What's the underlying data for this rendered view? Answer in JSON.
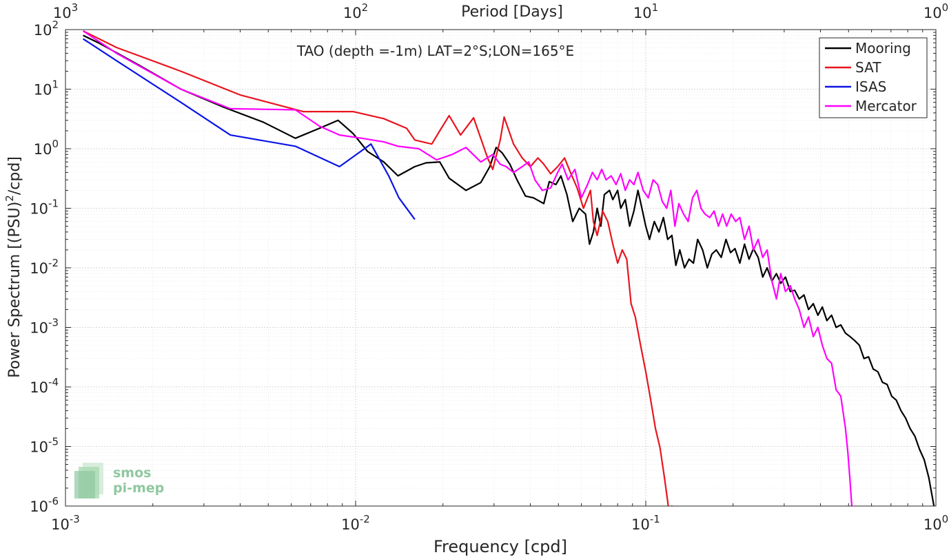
{
  "chart_data": {
    "type": "line",
    "title": "TAO (depth =-1m) LAT=2°S;LON=165°E",
    "xlabel": "Frequency [cpd]",
    "ylabel": "Power Spectrum [(PSU)²/cpd]",
    "x2label": "Period [Days]",
    "x_scale": "log",
    "y_scale": "log",
    "xlim": [
      0.001,
      1
    ],
    "ylim": [
      1e-06,
      100
    ],
    "x_ticks": [
      {
        "base": "10",
        "exp": "-3",
        "value": 0.001
      },
      {
        "base": "10",
        "exp": "-2",
        "value": 0.01
      },
      {
        "base": "10",
        "exp": "-1",
        "value": 0.1
      },
      {
        "base": "10",
        "exp": "0",
        "value": 1
      }
    ],
    "x2_ticks": [
      {
        "base": "10",
        "exp": "3",
        "value": 1000
      },
      {
        "base": "10",
        "exp": "2",
        "value": 100
      },
      {
        "base": "10",
        "exp": "1",
        "value": 10
      },
      {
        "base": "10",
        "exp": "0",
        "value": 1
      }
    ],
    "y_ticks": [
      {
        "base": "10",
        "exp": "2",
        "value": 100
      },
      {
        "base": "10",
        "exp": "1",
        "value": 10
      },
      {
        "base": "10",
        "exp": "0",
        "value": 1
      },
      {
        "base": "10",
        "exp": "-1",
        "value": 0.1
      },
      {
        "base": "10",
        "exp": "-2",
        "value": 0.01
      },
      {
        "base": "10",
        "exp": "-3",
        "value": 0.001
      },
      {
        "base": "10",
        "exp": "-4",
        "value": 0.0001
      },
      {
        "base": "10",
        "exp": "-5",
        "value": 1e-05
      },
      {
        "base": "10",
        "exp": "-6",
        "value": 1e-06
      }
    ],
    "grid": true,
    "legend_position": "top-right",
    "series": [
      {
        "name": "Mooring",
        "color": "#000000",
        "points": [
          [
            0.00115,
            80
          ],
          [
            0.0013,
            60
          ],
          [
            0.0018,
            25
          ],
          [
            0.0025,
            10
          ],
          [
            0.0035,
            5
          ],
          [
            0.0048,
            2.8
          ],
          [
            0.0062,
            1.5
          ],
          [
            0.0075,
            2.2
          ],
          [
            0.0087,
            3
          ],
          [
            0.0098,
            1.8
          ],
          [
            0.011,
            0.9
          ],
          [
            0.0125,
            0.6
          ],
          [
            0.014,
            0.35
          ],
          [
            0.016,
            0.5
          ],
          [
            0.0175,
            0.58
          ],
          [
            0.0195,
            0.6
          ],
          [
            0.021,
            0.32
          ],
          [
            0.024,
            0.2
          ],
          [
            0.027,
            0.27
          ],
          [
            0.029,
            0.5
          ],
          [
            0.0305,
            1.05
          ],
          [
            0.032,
            0.85
          ],
          [
            0.034,
            0.55
          ],
          [
            0.036,
            0.3
          ],
          [
            0.0385,
            0.16
          ],
          [
            0.041,
            0.15
          ],
          [
            0.0445,
            0.12
          ],
          [
            0.0465,
            0.28
          ],
          [
            0.049,
            0.25
          ],
          [
            0.051,
            0.35
          ],
          [
            0.0535,
            0.17
          ],
          [
            0.056,
            0.06
          ],
          [
            0.059,
            0.1
          ],
          [
            0.062,
            0.08
          ],
          [
            0.064,
            0.025
          ],
          [
            0.066,
            0.04
          ],
          [
            0.068,
            0.1
          ],
          [
            0.07,
            0.05
          ],
          [
            0.072,
            0.17
          ],
          [
            0.075,
            0.2
          ],
          [
            0.077,
            0.14
          ],
          [
            0.08,
            0.2
          ],
          [
            0.082,
            0.1
          ],
          [
            0.085,
            0.14
          ],
          [
            0.088,
            0.05
          ],
          [
            0.091,
            0.09
          ],
          [
            0.094,
            0.2
          ],
          [
            0.097,
            0.1
          ],
          [
            0.1,
            0.05
          ],
          [
            0.103,
            0.03
          ],
          [
            0.107,
            0.06
          ],
          [
            0.111,
            0.04
          ],
          [
            0.115,
            0.07
          ],
          [
            0.119,
            0.03
          ],
          [
            0.123,
            0.035
          ],
          [
            0.127,
            0.011
          ],
          [
            0.131,
            0.02
          ],
          [
            0.136,
            0.01
          ],
          [
            0.141,
            0.014
          ],
          [
            0.146,
            0.012
          ],
          [
            0.151,
            0.03
          ],
          [
            0.157,
            0.02
          ],
          [
            0.163,
            0.01
          ],
          [
            0.169,
            0.017
          ],
          [
            0.175,
            0.02
          ],
          [
            0.182,
            0.015
          ],
          [
            0.189,
            0.03
          ],
          [
            0.196,
            0.018
          ],
          [
            0.203,
            0.021
          ],
          [
            0.211,
            0.012
          ],
          [
            0.219,
            0.025
          ],
          [
            0.227,
            0.014
          ],
          [
            0.235,
            0.021
          ],
          [
            0.244,
            0.015
          ],
          [
            0.253,
            0.007
          ],
          [
            0.262,
            0.01
          ],
          [
            0.272,
            0.006
          ],
          [
            0.282,
            0.008
          ],
          [
            0.292,
            0.0055
          ],
          [
            0.303,
            0.007
          ],
          [
            0.315,
            0.004
          ],
          [
            0.326,
            0.0042
          ],
          [
            0.338,
            0.003
          ],
          [
            0.351,
            0.0035
          ],
          [
            0.364,
            0.002
          ],
          [
            0.378,
            0.0025
          ],
          [
            0.392,
            0.0016
          ],
          [
            0.406,
            0.0022
          ],
          [
            0.421,
            0.0013
          ],
          [
            0.437,
            0.0016
          ],
          [
            0.453,
            0.001
          ],
          [
            0.47,
            0.0011
          ],
          [
            0.488,
            0.0008
          ],
          [
            0.506,
            0.0007
          ],
          [
            0.525,
            0.0006
          ],
          [
            0.545,
            0.0005
          ],
          [
            0.565,
            0.0003
          ],
          [
            0.586,
            0.00032
          ],
          [
            0.608,
            0.0002
          ],
          [
            0.631,
            0.00018
          ],
          [
            0.654,
            0.00012
          ],
          [
            0.679,
            0.00011
          ],
          [
            0.704,
            7e-05
          ],
          [
            0.73,
            6e-05
          ],
          [
            0.758,
            4e-05
          ],
          [
            0.786,
            3e-05
          ],
          [
            0.815,
            2e-05
          ],
          [
            0.846,
            1.5e-05
          ],
          [
            0.878,
            9e-06
          ],
          [
            0.911,
            6e-06
          ],
          [
            0.945,
            3e-06
          ],
          [
            0.97,
            1.5e-06
          ],
          [
            0.985,
            1e-06
          ]
        ]
      },
      {
        "name": "SAT",
        "color": "#e8141e",
        "points": [
          [
            0.00115,
            95
          ],
          [
            0.0015,
            50
          ],
          [
            0.0025,
            20
          ],
          [
            0.004,
            8
          ],
          [
            0.0066,
            4.2
          ],
          [
            0.0098,
            4.2
          ],
          [
            0.0125,
            3.2
          ],
          [
            0.015,
            2.2
          ],
          [
            0.016,
            1.4
          ],
          [
            0.0183,
            1.2
          ],
          [
            0.0195,
            2
          ],
          [
            0.021,
            3.6
          ],
          [
            0.023,
            1.7
          ],
          [
            0.0255,
            3.3
          ],
          [
            0.0285,
            0.7
          ],
          [
            0.0297,
            0.45
          ],
          [
            0.0315,
            1.4
          ],
          [
            0.0325,
            3.4
          ],
          [
            0.035,
            1.2
          ],
          [
            0.0375,
            0.7
          ],
          [
            0.04,
            0.5
          ],
          [
            0.0425,
            0.7
          ],
          [
            0.0445,
            0.55
          ],
          [
            0.047,
            0.38
          ],
          [
            0.0497,
            0.5
          ],
          [
            0.0525,
            0.7
          ],
          [
            0.055,
            0.4
          ],
          [
            0.058,
            0.22
          ],
          [
            0.061,
            0.1
          ],
          [
            0.0645,
            0.2
          ],
          [
            0.066,
            0.06
          ],
          [
            0.068,
            0.035
          ],
          [
            0.071,
            0.09
          ],
          [
            0.074,
            0.06
          ],
          [
            0.077,
            0.025
          ],
          [
            0.08,
            0.012
          ],
          [
            0.083,
            0.02
          ],
          [
            0.086,
            0.014
          ],
          [
            0.089,
            0.0025
          ],
          [
            0.092,
            0.0015
          ],
          [
            0.096,
            0.0005
          ],
          [
            0.1,
            0.00018
          ],
          [
            0.104,
            6e-05
          ],
          [
            0.108,
            2e-05
          ],
          [
            0.112,
            9.5e-06
          ],
          [
            0.116,
            3e-06
          ],
          [
            0.119,
            1.2e-06
          ],
          [
            0.121,
            6e-07
          ],
          [
            0.123,
            1e-06
          ],
          [
            0.125,
            6e-07
          ]
        ]
      },
      {
        "name": "ISAS",
        "color": "#0a14e6",
        "points": [
          [
            0.00115,
            70
          ],
          [
            0.0015,
            30
          ],
          [
            0.0025,
            6
          ],
          [
            0.0037,
            1.7
          ],
          [
            0.0062,
            1.1
          ],
          [
            0.0088,
            0.5
          ],
          [
            0.0113,
            1.2
          ],
          [
            0.013,
            0.35
          ],
          [
            0.0141,
            0.15
          ],
          [
            0.016,
            0.065
          ]
        ]
      },
      {
        "name": "Mercator",
        "color": "#ff00ff",
        "points": [
          [
            0.00115,
            95
          ],
          [
            0.0015,
            40
          ],
          [
            0.0025,
            10
          ],
          [
            0.0037,
            4.7
          ],
          [
            0.0062,
            4.5
          ],
          [
            0.0075,
            2.4
          ],
          [
            0.0088,
            1.7
          ],
          [
            0.0105,
            1.5
          ],
          [
            0.0125,
            1.3
          ],
          [
            0.014,
            1.1
          ],
          [
            0.0165,
            1
          ],
          [
            0.019,
            0.65
          ],
          [
            0.0215,
            0.8
          ],
          [
            0.024,
            1.05
          ],
          [
            0.027,
            0.6
          ],
          [
            0.0297,
            0.8
          ],
          [
            0.0315,
            0.55
          ],
          [
            0.033,
            0.5
          ],
          [
            0.035,
            0.4
          ],
          [
            0.0375,
            0.5
          ],
          [
            0.0395,
            0.6
          ],
          [
            0.0415,
            0.3
          ],
          [
            0.044,
            0.2
          ],
          [
            0.047,
            0.22
          ],
          [
            0.0497,
            0.4
          ],
          [
            0.0515,
            0.55
          ],
          [
            0.054,
            0.3
          ],
          [
            0.057,
            0.45
          ],
          [
            0.06,
            0.15
          ],
          [
            0.063,
            0.25
          ],
          [
            0.0655,
            0.4
          ],
          [
            0.068,
            0.3
          ],
          [
            0.0705,
            0.45
          ],
          [
            0.073,
            0.3
          ],
          [
            0.076,
            0.35
          ],
          [
            0.079,
            0.25
          ],
          [
            0.082,
            0.38
          ],
          [
            0.085,
            0.2
          ],
          [
            0.088,
            0.3
          ],
          [
            0.091,
            0.25
          ],
          [
            0.094,
            0.4
          ],
          [
            0.098,
            0.2
          ],
          [
            0.102,
            0.15
          ],
          [
            0.106,
            0.3
          ],
          [
            0.11,
            0.25
          ],
          [
            0.114,
            0.13
          ],
          [
            0.118,
            0.1
          ],
          [
            0.122,
            0.2
          ],
          [
            0.126,
            0.05
          ],
          [
            0.13,
            0.12
          ],
          [
            0.135,
            0.08
          ],
          [
            0.14,
            0.06
          ],
          [
            0.145,
            0.15
          ],
          [
            0.15,
            0.2
          ],
          [
            0.155,
            0.1
          ],
          [
            0.16,
            0.08
          ],
          [
            0.166,
            0.07
          ],
          [
            0.172,
            0.09
          ],
          [
            0.178,
            0.05
          ],
          [
            0.184,
            0.08
          ],
          [
            0.19,
            0.05
          ],
          [
            0.197,
            0.08
          ],
          [
            0.204,
            0.06
          ],
          [
            0.211,
            0.07
          ],
          [
            0.219,
            0.03
          ],
          [
            0.227,
            0.05
          ],
          [
            0.235,
            0.02
          ],
          [
            0.244,
            0.03
          ],
          [
            0.253,
            0.015
          ],
          [
            0.262,
            0.02
          ],
          [
            0.272,
            0.006
          ],
          [
            0.282,
            0.003
          ],
          [
            0.292,
            0.008
          ],
          [
            0.303,
            0.004
          ],
          [
            0.315,
            0.005
          ],
          [
            0.326,
            0.003
          ],
          [
            0.338,
            0.002
          ],
          [
            0.351,
            0.001
          ],
          [
            0.364,
            0.0015
          ],
          [
            0.378,
            0.0007
          ],
          [
            0.392,
            0.001
          ],
          [
            0.406,
            0.0005
          ],
          [
            0.421,
            0.0003
          ],
          [
            0.437,
            0.00025
          ],
          [
            0.453,
            9e-05
          ],
          [
            0.47,
            7e-05
          ],
          [
            0.488,
            2e-05
          ],
          [
            0.497,
            8e-06
          ],
          [
            0.505,
            3e-06
          ],
          [
            0.51,
            1.5e-06
          ],
          [
            0.513,
            1e-06
          ]
        ]
      }
    ]
  },
  "logo": {
    "line1": "smos",
    "line2": "pi-mep"
  }
}
